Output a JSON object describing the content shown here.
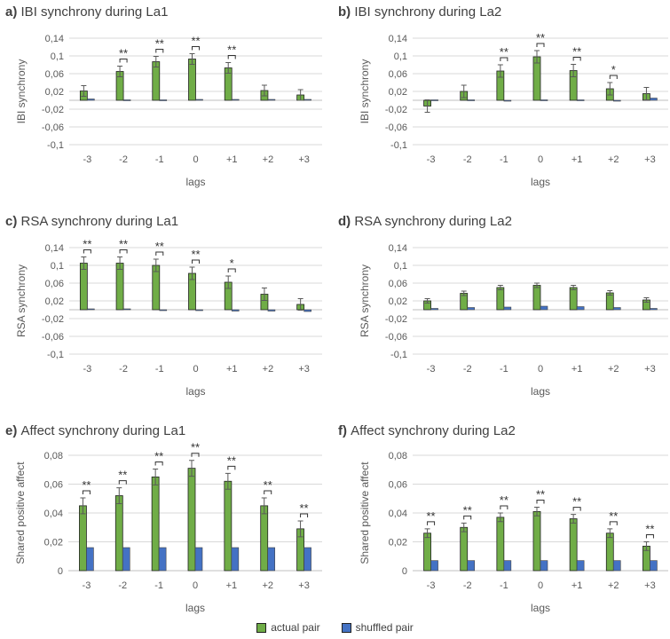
{
  "colors": {
    "actual": "#70AD47",
    "shuffled": "#4472C4",
    "grid": "#D9D9D9"
  },
  "legend": {
    "actual": "actual pair",
    "shuffled": "shuffled pair"
  },
  "chart_data": [
    {
      "type": "bar",
      "panel": "a)",
      "title": "IBI synchrony during La1",
      "xlabel": "lags",
      "ylabel": "IBI synchrony",
      "categories": [
        "-3",
        "-2",
        "-1",
        "0",
        "+1",
        "+2",
        "+3"
      ],
      "yticks": [
        0.14,
        0.1,
        0.06,
        0.02,
        -0.02,
        -0.06,
        -0.1
      ],
      "ytick_labels": [
        "0,14",
        "0,1",
        "0,06",
        "0,02",
        "-0,02",
        "-0,06",
        "-0,1"
      ],
      "ylim": [
        -0.1,
        0.14
      ],
      "series": [
        {
          "name": "actual pair",
          "values": [
            0.021,
            0.065,
            0.087,
            0.093,
            0.073,
            0.022,
            0.012
          ],
          "errors": [
            0.012,
            0.012,
            0.012,
            0.012,
            0.012,
            0.012,
            0.012
          ]
        },
        {
          "name": "shuffled pair",
          "values": [
            0.003,
            0.001,
            0.001,
            0.002,
            0.002,
            0.002,
            0.002
          ]
        }
      ],
      "significance": [
        "",
        "**",
        "**",
        "**",
        "**",
        "",
        ""
      ]
    },
    {
      "type": "bar",
      "panel": "b)",
      "title": "IBI synchrony during La2",
      "xlabel": "lags",
      "ylabel": "IBI synchrony",
      "categories": [
        "-3",
        "-2",
        "-1",
        "0",
        "+1",
        "+2",
        "+3"
      ],
      "yticks": [
        0.14,
        0.1,
        0.06,
        0.02,
        -0.02,
        -0.06,
        -0.1
      ],
      "ytick_labels": [
        "0,14",
        "0,1",
        "0,06",
        "0,02",
        "-0,02",
        "-0,06",
        "-0,1"
      ],
      "ylim": [
        -0.1,
        0.14
      ],
      "series": [
        {
          "name": "actual pair",
          "values": [
            -0.013,
            0.02,
            0.066,
            0.098,
            0.067,
            0.026,
            0.015
          ],
          "errors": [
            0.014,
            0.014,
            0.014,
            0.014,
            0.014,
            0.014,
            0.014
          ]
        },
        {
          "name": "shuffled pair",
          "values": [
            0.001,
            0.001,
            -0.001,
            0.001,
            0.001,
            -0.001,
            0.005
          ]
        }
      ],
      "significance": [
        "",
        "",
        "**",
        "**",
        "**",
        "*",
        ""
      ]
    },
    {
      "type": "bar",
      "panel": "c)",
      "title": "RSA synchrony during La1",
      "xlabel": "lags",
      "ylabel": "RSA synchrony",
      "categories": [
        "-3",
        "-2",
        "-1",
        "0",
        "+1",
        "+2",
        "+3"
      ],
      "yticks": [
        0.14,
        0.1,
        0.06,
        0.02,
        -0.02,
        -0.06,
        -0.1
      ],
      "ytick_labels": [
        "0,14",
        "0,1",
        "0,06",
        "0,02",
        "-0,02",
        "-0,06",
        "-0,1"
      ],
      "ylim": [
        -0.1,
        0.14
      ],
      "series": [
        {
          "name": "actual pair",
          "values": [
            0.105,
            0.105,
            0.1,
            0.082,
            0.062,
            0.035,
            0.012
          ],
          "errors": [
            0.014,
            0.014,
            0.014,
            0.014,
            0.014,
            0.014,
            0.013
          ]
        },
        {
          "name": "shuffled pair",
          "values": [
            0.002,
            0.002,
            -0.001,
            -0.002,
            -0.003,
            -0.003,
            -0.004
          ]
        }
      ],
      "significance": [
        "**",
        "**",
        "**",
        "**",
        "*",
        "",
        ""
      ]
    },
    {
      "type": "bar",
      "panel": "d)",
      "title": "RSA synchrony during La2",
      "xlabel": "lags",
      "ylabel": "RSA synchrony",
      "categories": [
        "-3",
        "-2",
        "-1",
        "0",
        "+1",
        "+2",
        "+3"
      ],
      "yticks": [
        0.14,
        0.1,
        0.06,
        0.02,
        -0.02,
        -0.06,
        -0.1
      ],
      "ytick_labels": [
        "0,14",
        "0,1",
        "0,06",
        "0,02",
        "-0,02",
        "-0,06",
        "-0,1"
      ],
      "ylim": [
        -0.1,
        0.14
      ],
      "series": [
        {
          "name": "actual pair",
          "values": [
            0.02,
            0.037,
            0.05,
            0.055,
            0.05,
            0.038,
            0.022
          ],
          "errors": [
            0.005,
            0.005,
            0.005,
            0.005,
            0.005,
            0.005,
            0.005
          ]
        },
        {
          "name": "shuffled pair",
          "values": [
            0.003,
            0.005,
            0.006,
            0.008,
            0.007,
            0.005,
            0.003
          ]
        }
      ],
      "significance": [
        "",
        "",
        "",
        "",
        "",
        "",
        ""
      ]
    },
    {
      "type": "bar",
      "panel": "e)",
      "title": "Affect synchrony during La1",
      "xlabel": "lags",
      "ylabel": "Shared positive affect",
      "categories": [
        "-3",
        "-2",
        "-1",
        "0",
        "+1",
        "+2",
        "+3"
      ],
      "yticks": [
        0.08,
        0.06,
        0.04,
        0.02,
        0
      ],
      "ytick_labels": [
        "0,08",
        "0,06",
        "0,04",
        "0,02",
        "0"
      ],
      "ylim": [
        0,
        0.08
      ],
      "series": [
        {
          "name": "actual pair",
          "values": [
            0.045,
            0.052,
            0.065,
            0.071,
            0.062,
            0.045,
            0.029
          ],
          "errors": [
            0.0055,
            0.0055,
            0.0055,
            0.0055,
            0.0055,
            0.0055,
            0.0055
          ]
        },
        {
          "name": "shuffled pair",
          "values": [
            0.016,
            0.016,
            0.016,
            0.016,
            0.016,
            0.016,
            0.016
          ]
        }
      ],
      "significance": [
        "**",
        "**",
        "**",
        "**",
        "**",
        "**",
        "**"
      ]
    },
    {
      "type": "bar",
      "panel": "f)",
      "title": "Affect synchrony during La2",
      "xlabel": "lags",
      "ylabel": "Shared positive affect",
      "categories": [
        "-3",
        "-2",
        "-1",
        "0",
        "+1",
        "+2",
        "+3"
      ],
      "yticks": [
        0.08,
        0.06,
        0.04,
        0.02,
        0
      ],
      "ytick_labels": [
        "0,08",
        "0,06",
        "0,04",
        "0,02",
        "0"
      ],
      "ylim": [
        0,
        0.08
      ],
      "series": [
        {
          "name": "actual pair",
          "values": [
            0.026,
            0.03,
            0.037,
            0.041,
            0.036,
            0.026,
            0.017
          ],
          "errors": [
            0.003,
            0.003,
            0.003,
            0.003,
            0.003,
            0.003,
            0.003
          ]
        },
        {
          "name": "shuffled pair",
          "values": [
            0.007,
            0.007,
            0.007,
            0.007,
            0.007,
            0.007,
            0.007
          ]
        }
      ],
      "significance": [
        "**",
        "**",
        "**",
        "**",
        "**",
        "**",
        "**"
      ]
    }
  ]
}
